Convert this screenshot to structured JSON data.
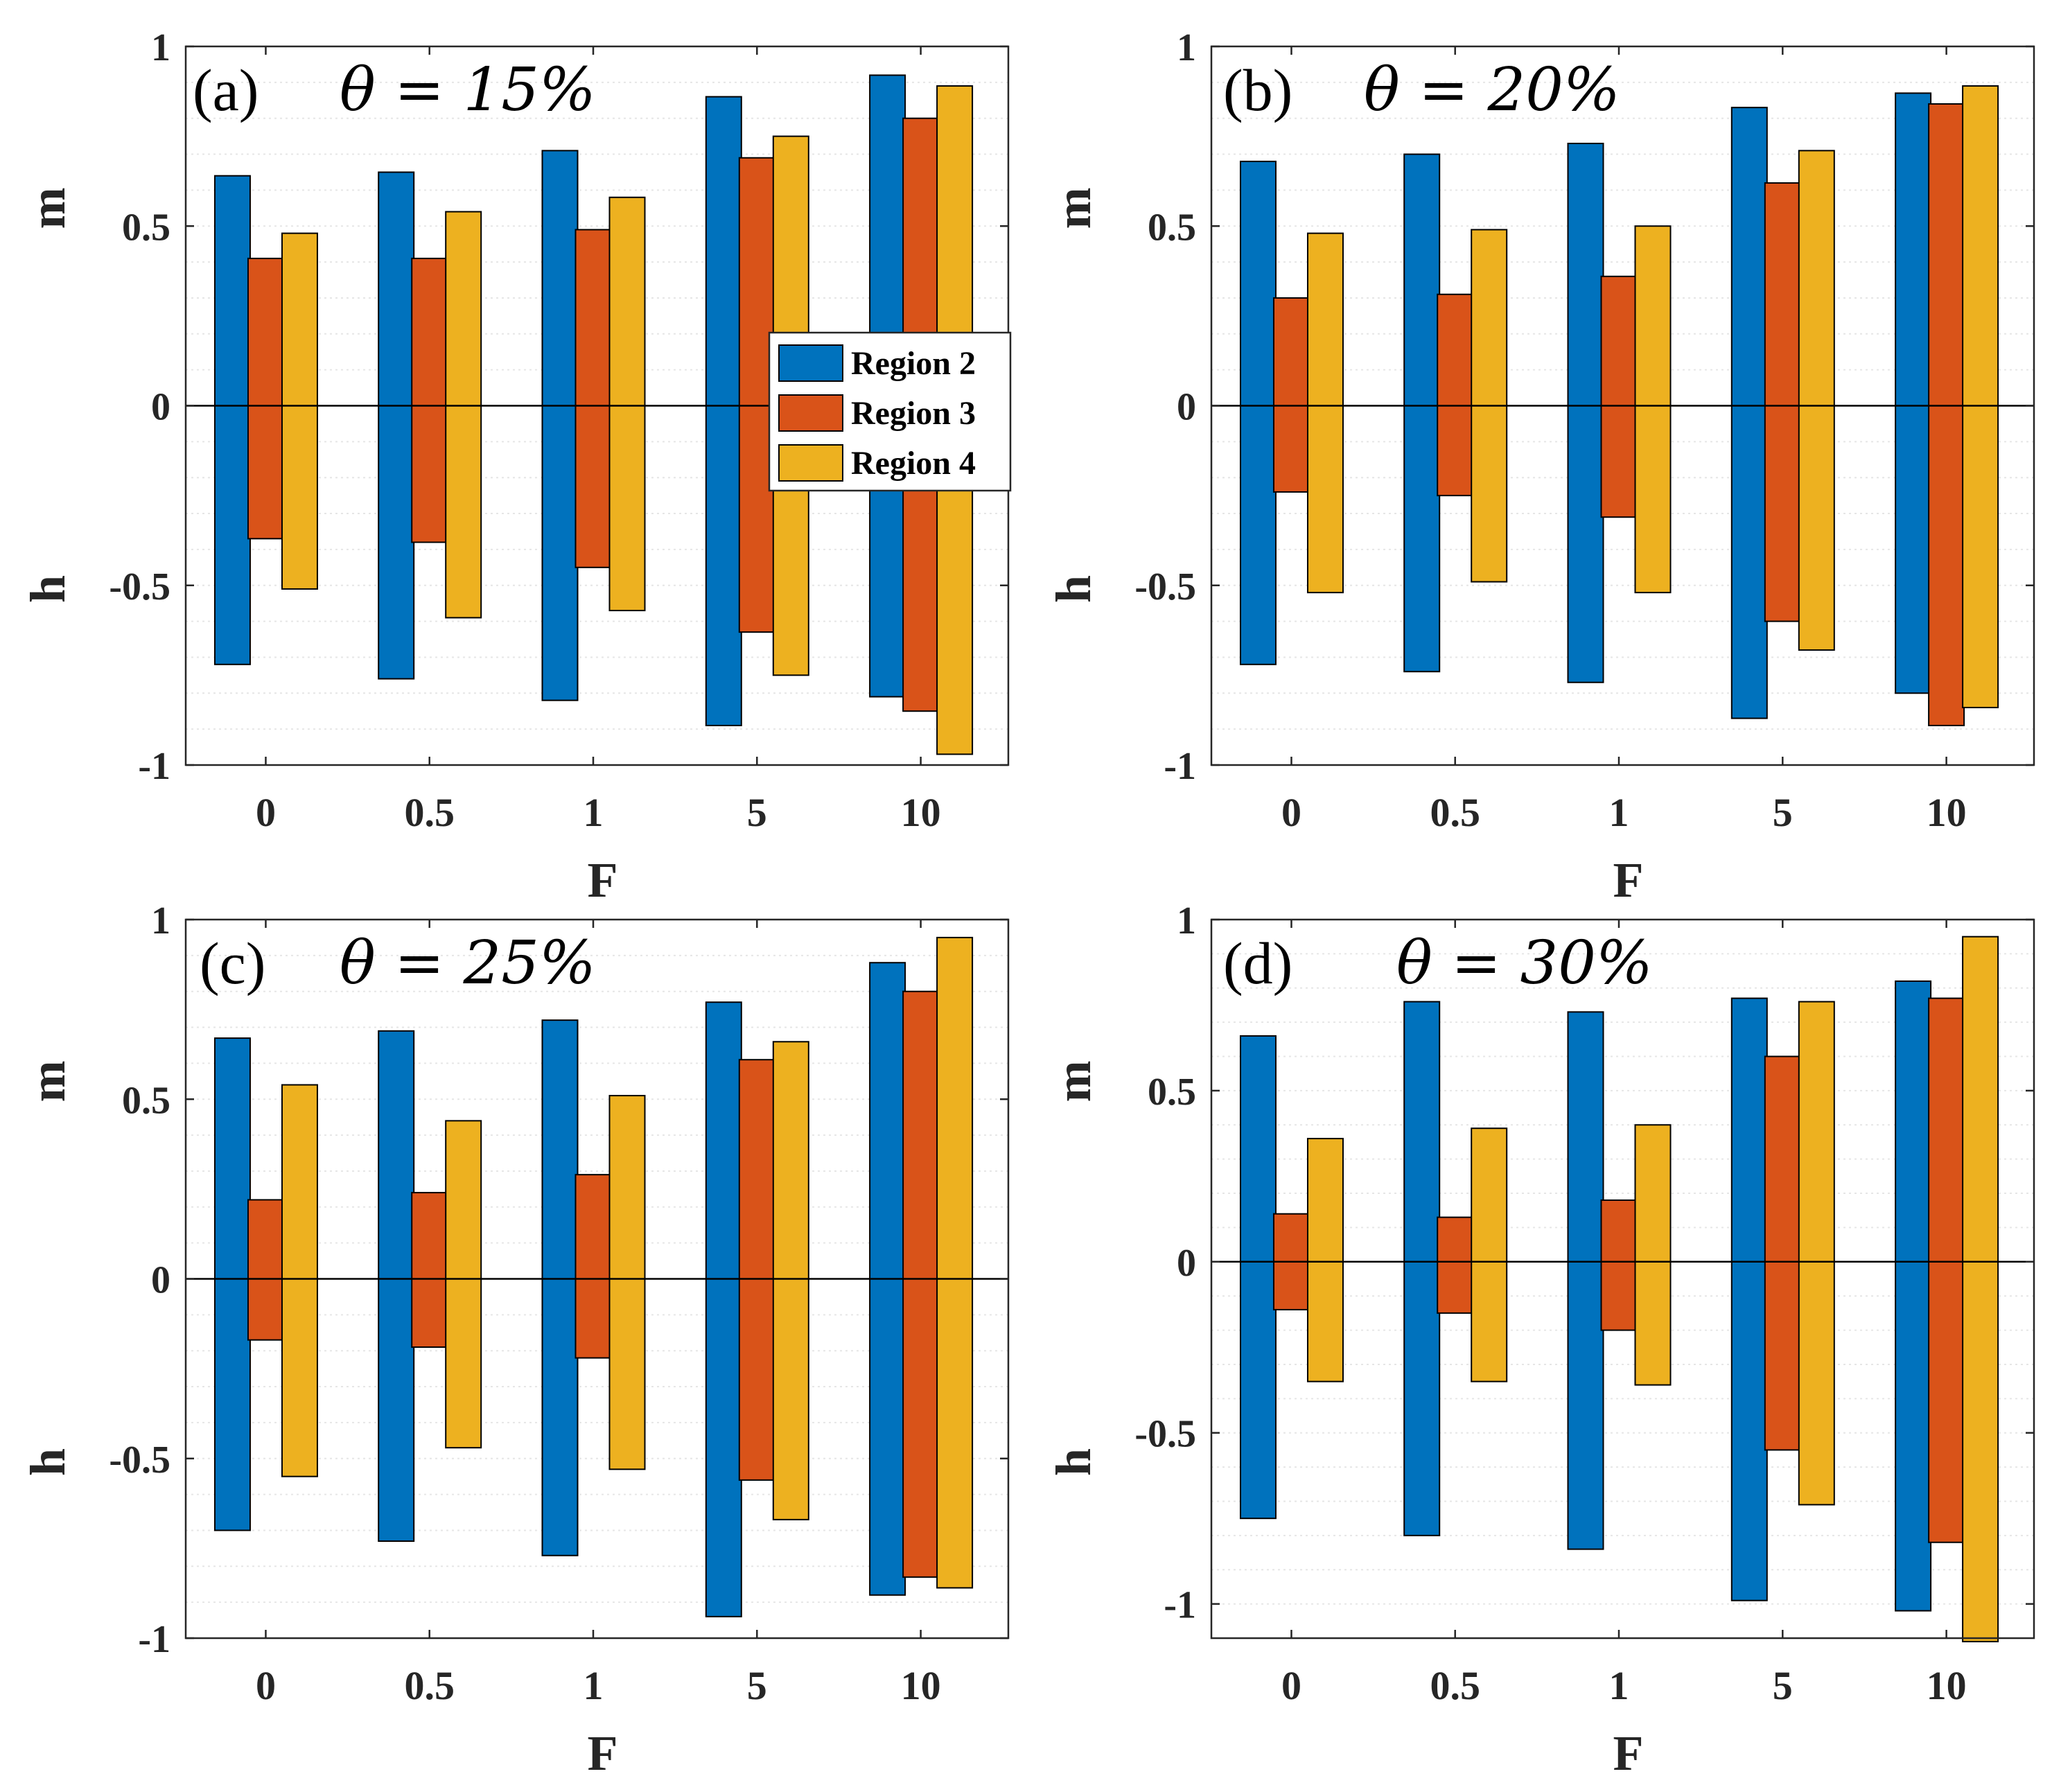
{
  "colors": {
    "region2": "#0072BD",
    "region3": "#D95319",
    "region4": "#EDB120",
    "axis": "#262626",
    "grid": "#e6e6e6"
  },
  "legend": {
    "entries": [
      "Region 2",
      "Region 3",
      "Region 4"
    ],
    "location": "inside panel (a), right side"
  },
  "chart_data": [
    {
      "type": "bar",
      "panel": "(a)",
      "title_tag": "(a)",
      "title_eq": "θ = 15%",
      "categories": [
        "0",
        "0.5",
        "1",
        "5",
        "10"
      ],
      "xlabel": "F",
      "ylabel_top": "m",
      "ylabel_bottom": "h",
      "ylim": [
        -1,
        1
      ],
      "yticks": [
        "1",
        "0.5",
        "0",
        "-0.5",
        "-1"
      ],
      "series": [
        {
          "name": "Region 2",
          "m": [
            0.64,
            0.65,
            0.71,
            0.86,
            0.92
          ],
          "h": [
            -0.72,
            -0.76,
            -0.82,
            -0.89,
            -0.81
          ]
        },
        {
          "name": "Region 3",
          "m": [
            0.41,
            0.41,
            0.49,
            0.69,
            0.8
          ],
          "h": [
            -0.37,
            -0.38,
            -0.45,
            -0.63,
            -0.85
          ]
        },
        {
          "name": "Region 4",
          "m": [
            0.48,
            0.54,
            0.58,
            0.75,
            0.89
          ],
          "h": [
            -0.51,
            -0.59,
            -0.57,
            -0.75,
            -0.97
          ]
        }
      ]
    },
    {
      "type": "bar",
      "panel": "(b)",
      "title_tag": "(b)",
      "title_eq": "θ = 20%",
      "categories": [
        "0",
        "0.5",
        "1",
        "5",
        "10"
      ],
      "xlabel": "F",
      "ylabel_top": "m",
      "ylabel_bottom": "h",
      "ylim": [
        -1,
        1
      ],
      "yticks": [
        "1",
        "0.5",
        "0",
        "-0.5",
        "-1"
      ],
      "series": [
        {
          "name": "Region 2",
          "m": [
            0.68,
            0.7,
            0.73,
            0.83,
            0.87
          ],
          "h": [
            -0.72,
            -0.74,
            -0.77,
            -0.87,
            -0.8
          ]
        },
        {
          "name": "Region 3",
          "m": [
            0.3,
            0.31,
            0.36,
            0.62,
            0.84
          ],
          "h": [
            -0.24,
            -0.25,
            -0.31,
            -0.6,
            -0.89
          ]
        },
        {
          "name": "Region 4",
          "m": [
            0.48,
            0.49,
            0.5,
            0.71,
            0.89
          ],
          "h": [
            -0.52,
            -0.49,
            -0.52,
            -0.68,
            -0.84
          ]
        }
      ]
    },
    {
      "type": "bar",
      "panel": "(c)",
      "title_tag": "(c)",
      "title_eq": "θ = 25%",
      "categories": [
        "0",
        "0.5",
        "1",
        "5",
        "10"
      ],
      "xlabel": "F",
      "ylabel_top": "m",
      "ylabel_bottom": "h",
      "ylim": [
        -1,
        1
      ],
      "yticks": [
        "1",
        "0.5",
        "0",
        "-0.5",
        "-1"
      ],
      "series": [
        {
          "name": "Region 2",
          "m": [
            0.67,
            0.69,
            0.72,
            0.77,
            0.88
          ],
          "h": [
            -0.7,
            -0.73,
            -0.77,
            -0.94,
            -0.88
          ]
        },
        {
          "name": "Region 3",
          "m": [
            0.22,
            0.24,
            0.29,
            0.61,
            0.8
          ],
          "h": [
            -0.17,
            -0.19,
            -0.22,
            -0.56,
            -0.83
          ]
        },
        {
          "name": "Region 4",
          "m": [
            0.54,
            0.44,
            0.51,
            0.66,
            0.95
          ],
          "h": [
            -0.55,
            -0.47,
            -0.53,
            -0.67,
            -0.86
          ]
        }
      ]
    },
    {
      "type": "bar",
      "panel": "(d)",
      "title_tag": "(d)",
      "title_eq": "θ = 30%",
      "categories": [
        "0",
        "0.5",
        "1",
        "5",
        "10"
      ],
      "xlabel": "F",
      "ylabel_top": "m",
      "ylabel_bottom": "h",
      "ylim": [
        -1.1,
        1
      ],
      "yticks": [
        "1",
        "0.5",
        "0",
        "-0.5",
        "-1"
      ],
      "series": [
        {
          "name": "Region 2",
          "m": [
            0.66,
            0.76,
            0.73,
            0.77,
            0.82
          ],
          "h": [
            -0.75,
            -0.8,
            -0.84,
            -0.99,
            -1.02
          ]
        },
        {
          "name": "Region 3",
          "m": [
            0.14,
            0.13,
            0.18,
            0.6,
            0.77
          ],
          "h": [
            -0.14,
            -0.15,
            -0.2,
            -0.55,
            -0.82
          ]
        },
        {
          "name": "Region 4",
          "m": [
            0.36,
            0.39,
            0.4,
            0.76,
            0.95
          ],
          "h": [
            -0.35,
            -0.35,
            -0.36,
            -0.71,
            -1.11
          ]
        }
      ]
    }
  ]
}
